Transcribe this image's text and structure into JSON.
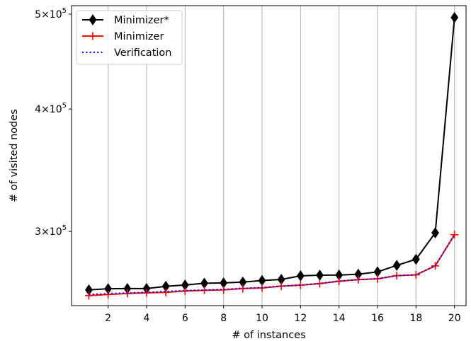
{
  "chart_data": {
    "type": "line",
    "xlabel": "# of instances",
    "ylabel": "# of visited nodes",
    "y_scale": "log",
    "grid": "vertical lines at x ticks",
    "legend_position": "top-left",
    "xlim": [
      0.1,
      20.6
    ],
    "ylim": [
      252000,
      510000
    ],
    "x_ticks": [
      2,
      4,
      6,
      8,
      10,
      12,
      14,
      16,
      18,
      20
    ],
    "x_tick_labels": [
      "2",
      "4",
      "6",
      "8",
      "10",
      "12",
      "14",
      "16",
      "18",
      "20"
    ],
    "y_ticks": [
      300000,
      400000,
      500000
    ],
    "y_tick_labels": [
      {
        "mantissa": "3",
        "exponent": "5"
      },
      {
        "mantissa": "4",
        "exponent": "5"
      },
      {
        "mantissa": "5",
        "exponent": "5"
      }
    ],
    "x": [
      1,
      2,
      3,
      4,
      5,
      6,
      7,
      8,
      9,
      10,
      11,
      12,
      13,
      14,
      15,
      16,
      17,
      18,
      19,
      20
    ],
    "series": [
      {
        "name": "Minimizer*",
        "color": "#000000",
        "line_style": "solid",
        "marker": "thin-diamond",
        "values": [
          261500,
          262200,
          262300,
          262300,
          263700,
          264500,
          265600,
          265800,
          266300,
          267300,
          268000,
          270300,
          270700,
          270800,
          271300,
          272800,
          277000,
          281000,
          299000,
          496000
        ]
      },
      {
        "name": "Minimizer",
        "color": "#ff0000",
        "line_style": "solid",
        "marker": "plus",
        "values": [
          258000,
          258700,
          259300,
          259700,
          260000,
          260800,
          261200,
          261500,
          262300,
          262700,
          263800,
          264400,
          265400,
          266900,
          267900,
          268400,
          270400,
          270900,
          276700,
          297700
        ]
      },
      {
        "name": "Verification",
        "color": "#0000ff",
        "line_style": "dotted",
        "marker": "none",
        "values": [
          258700,
          259200,
          259600,
          260000,
          260500,
          261100,
          261400,
          261800,
          262500,
          262900,
          263900,
          264500,
          265500,
          266900,
          267900,
          268400,
          270400,
          270900,
          276700,
          297700
        ]
      }
    ]
  }
}
